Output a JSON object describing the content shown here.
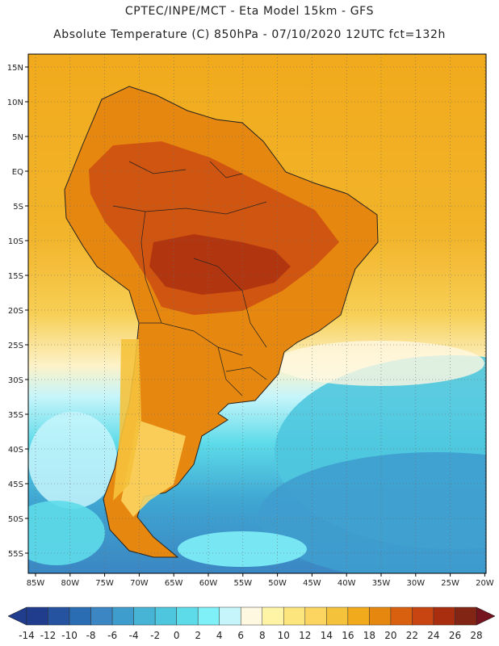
{
  "header": {
    "line1": "CPTEC/INPE/MCT -  Eta Model 15km - GFS",
    "line2": "Absolute Temperature (C) 850hPa - 07/10/2020 12UTC fct=132h"
  },
  "map": {
    "lat_labels": [
      "15N",
      "10N",
      "5N",
      "EQ",
      "5S",
      "10S",
      "15S",
      "20S",
      "25S",
      "30S",
      "35S",
      "40S",
      "45S",
      "50S",
      "55S"
    ],
    "lon_labels": [
      "85W",
      "80W",
      "75W",
      "70W",
      "65W",
      "60W",
      "55W",
      "50W",
      "45W",
      "40W",
      "35W",
      "30W",
      "25W",
      "20W"
    ]
  },
  "colorbar": {
    "labels": [
      "-14",
      "-12",
      "-10",
      "-8",
      "-6",
      "-4",
      "-2",
      "0",
      "2",
      "4",
      "6",
      "8",
      "10",
      "12",
      "14",
      "16",
      "18",
      "20",
      "22",
      "24",
      "26",
      "28"
    ],
    "colors": [
      "#1f3d8c",
      "#25539f",
      "#2b6db3",
      "#3b86c3",
      "#3f9dce",
      "#47b4d6",
      "#4ec6de",
      "#5ddbe9",
      "#7ff0f7",
      "#c6f5fb",
      "#fff8e1",
      "#fff3a6",
      "#fde57e",
      "#fbd560",
      "#f5c23c",
      "#f1aa1c",
      "#e6870f",
      "#d9600f",
      "#c84411",
      "#a92e10",
      "#822515"
    ],
    "low_color": "#1f3d8c",
    "high_color": "#75131f"
  }
}
